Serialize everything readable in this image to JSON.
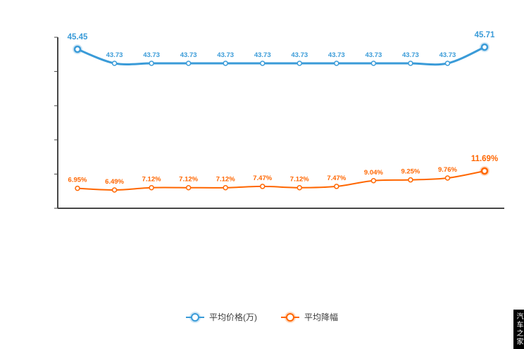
{
  "chart_data": {
    "type": "line",
    "title": "",
    "xlabel": "",
    "ylabel": "",
    "legend_position": "bottom",
    "grid": false,
    "x_count": 12,
    "series": [
      {
        "name": "平均价格(万)",
        "color": "#3a9bd8",
        "values": [
          45.45,
          43.73,
          43.73,
          43.73,
          43.73,
          43.73,
          43.73,
          43.73,
          43.73,
          43.73,
          43.73,
          45.71
        ],
        "labels": [
          "45.45",
          "43.73",
          "43.73",
          "43.73",
          "43.73",
          "43.73",
          "43.73",
          "43.73",
          "43.73",
          "43.73",
          "43.73",
          "45.71"
        ],
        "emphasized_points": [
          0,
          11
        ]
      },
      {
        "name": "平均降幅",
        "color": "#ff6600",
        "values": [
          6.95,
          6.49,
          7.12,
          7.12,
          7.12,
          7.47,
          7.12,
          7.47,
          9.04,
          9.25,
          9.76,
          11.69
        ],
        "labels": [
          "6.95%",
          "6.49%",
          "7.12%",
          "7.12%",
          "7.12%",
          "7.47%",
          "7.12%",
          "7.47%",
          "9.04%",
          "9.25%",
          "9.76%",
          "11.69%"
        ],
        "emphasized_points": [
          11
        ]
      }
    ]
  },
  "legend": {
    "items": [
      {
        "label": "平均价格(万)",
        "color": "#3a9bd8"
      },
      {
        "label": "平均降幅",
        "color": "#ff6600"
      }
    ]
  },
  "watermark": {
    "text": "汽车之家"
  }
}
